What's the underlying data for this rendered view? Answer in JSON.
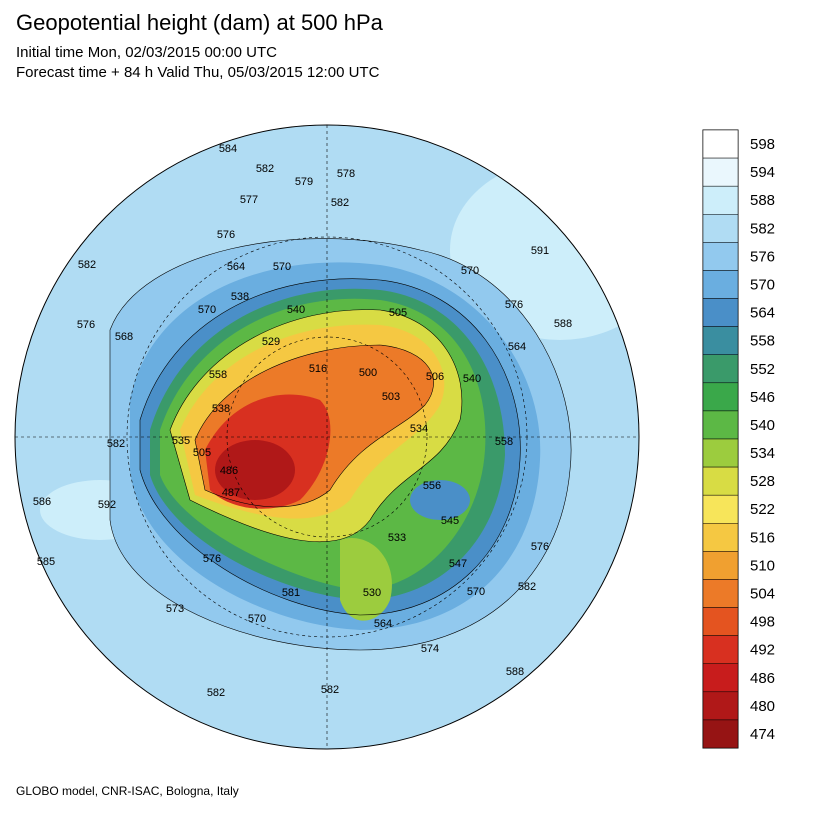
{
  "header": {
    "title": "Geopotential height (dam) at 500 hPa",
    "line1": "Initial time Mon, 02/03/2015 00:00 UTC",
    "line2": "Forecast time + 84 h Valid Thu, 05/03/2015 12:00 UTC"
  },
  "footer": "GLOBO model, CNR-ISAC, Bologna, Italy",
  "legend": {
    "levels": [
      {
        "value": 598,
        "color": "#ffffff"
      },
      {
        "value": 594,
        "color": "#eaf7fd"
      },
      {
        "value": 588,
        "color": "#cdeefa"
      },
      {
        "value": 582,
        "color": "#b0dcf3"
      },
      {
        "value": 576,
        "color": "#92c9ee"
      },
      {
        "value": 570,
        "color": "#6aaee0"
      },
      {
        "value": 564,
        "color": "#4a8fc8"
      },
      {
        "value": 558,
        "color": "#3a8ea0"
      },
      {
        "value": 552,
        "color": "#3a9a6a"
      },
      {
        "value": 546,
        "color": "#3aa84a"
      },
      {
        "value": 540,
        "color": "#5cb845"
      },
      {
        "value": 534,
        "color": "#9ccc3e"
      },
      {
        "value": 528,
        "color": "#d8dc44"
      },
      {
        "value": 522,
        "color": "#f7e55a"
      },
      {
        "value": 516,
        "color": "#f5c842"
      },
      {
        "value": 510,
        "color": "#f0a030"
      },
      {
        "value": 504,
        "color": "#ec7a28"
      },
      {
        "value": 498,
        "color": "#e45420"
      },
      {
        "value": 492,
        "color": "#d83020"
      },
      {
        "value": 486,
        "color": "#c81c1c"
      },
      {
        "value": 480,
        "color": "#b01818"
      },
      {
        "value": 474,
        "color": "#961414"
      }
    ]
  },
  "map": {
    "contour_labels": [
      584,
      582,
      579,
      578,
      577,
      582,
      576,
      564,
      570,
      538,
      570,
      540,
      529,
      568,
      576,
      582,
      558,
      516,
      500,
      505,
      506,
      503,
      570,
      591,
      576,
      588,
      564,
      540,
      534,
      558,
      556,
      545,
      533,
      547,
      576,
      582,
      570,
      574,
      588,
      530,
      564,
      581,
      570,
      573,
      576,
      585,
      586,
      592,
      582,
      538,
      535,
      505,
      486,
      487,
      582,
      582
    ]
  }
}
